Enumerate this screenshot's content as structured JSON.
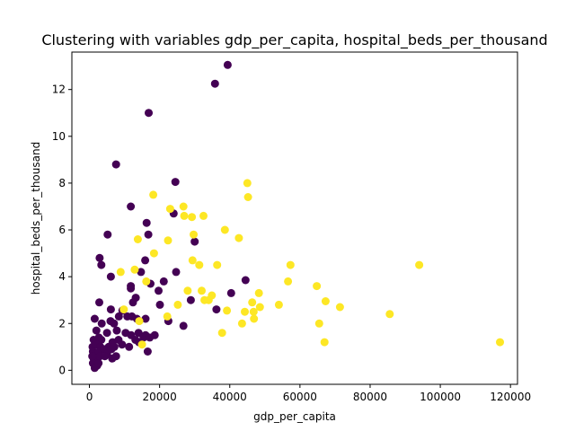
{
  "chart_data": {
    "type": "scatter",
    "title": "Clustering with variables gdp_per_capita, hospital_beds_per_thousand",
    "xlabel": "gdp_per_capita",
    "ylabel": "hospital_beds_per_thousand",
    "xlim": [
      -5000,
      122000
    ],
    "ylim": [
      -0.6,
      13.6
    ],
    "xticks": [
      0,
      20000,
      40000,
      60000,
      80000,
      100000,
      120000
    ],
    "xtick_labels": [
      "0",
      "20000",
      "40000",
      "60000",
      "80000",
      "100000",
      "120000"
    ],
    "yticks": [
      0,
      2,
      4,
      6,
      8,
      10,
      12
    ],
    "ytick_labels": [
      "0",
      "2",
      "4",
      "6",
      "8",
      "10",
      "12"
    ],
    "grid": false,
    "colors": {
      "cluster_0": "#440154",
      "cluster_1": "#fde725"
    },
    "series": [
      {
        "cluster": 0,
        "color": "#440154",
        "points": [
          [
            39400,
            13.05
          ],
          [
            35800,
            12.25
          ],
          [
            16900,
            11.0
          ],
          [
            7600,
            8.8
          ],
          [
            24500,
            8.05
          ],
          [
            11800,
            7.0
          ],
          [
            24000,
            6.7
          ],
          [
            16300,
            6.3
          ],
          [
            5200,
            5.8
          ],
          [
            16800,
            5.8
          ],
          [
            30000,
            5.5
          ],
          [
            2900,
            4.8
          ],
          [
            3400,
            4.5
          ],
          [
            15900,
            4.7
          ],
          [
            24700,
            4.2
          ],
          [
            6100,
            4.0
          ],
          [
            14700,
            4.2
          ],
          [
            17400,
            3.7
          ],
          [
            21200,
            3.8
          ],
          [
            44500,
            3.85
          ],
          [
            11800,
            3.6
          ],
          [
            11800,
            3.5
          ],
          [
            19700,
            3.4
          ],
          [
            40400,
            3.3
          ],
          [
            13200,
            3.1
          ],
          [
            2800,
            2.9
          ],
          [
            12400,
            2.9
          ],
          [
            28900,
            3.0
          ],
          [
            36200,
            2.6
          ],
          [
            20100,
            2.8
          ],
          [
            9400,
            2.55
          ],
          [
            6100,
            2.6
          ],
          [
            8400,
            2.3
          ],
          [
            10800,
            2.3
          ],
          [
            12100,
            2.3
          ],
          [
            13500,
            2.2
          ],
          [
            16000,
            2.2
          ],
          [
            1500,
            2.2
          ],
          [
            22500,
            2.1
          ],
          [
            26800,
            1.9
          ],
          [
            3500,
            2.0
          ],
          [
            6000,
            2.1
          ],
          [
            7000,
            2.0
          ],
          [
            2000,
            1.7
          ],
          [
            5000,
            1.6
          ],
          [
            7800,
            1.7
          ],
          [
            10300,
            1.6
          ],
          [
            11900,
            1.5
          ],
          [
            14000,
            1.6
          ],
          [
            16000,
            1.5
          ],
          [
            18600,
            1.5
          ],
          [
            1200,
            1.3
          ],
          [
            2700,
            1.4
          ],
          [
            3400,
            1.3
          ],
          [
            6600,
            1.2
          ],
          [
            8300,
            1.3
          ],
          [
            13100,
            1.3
          ],
          [
            15400,
            1.4
          ],
          [
            17200,
            1.4
          ],
          [
            900,
            1.0
          ],
          [
            2200,
            1.1
          ],
          [
            3100,
            1.0
          ],
          [
            5500,
            1.0
          ],
          [
            7100,
            1.0
          ],
          [
            9300,
            1.1
          ],
          [
            11300,
            1.0
          ],
          [
            14100,
            1.2
          ],
          [
            1000,
            0.8
          ],
          [
            1800,
            0.7
          ],
          [
            2700,
            0.8
          ],
          [
            4200,
            0.9
          ],
          [
            5000,
            0.7
          ],
          [
            6300,
            0.9
          ],
          [
            7600,
            0.6
          ],
          [
            16600,
            0.8
          ],
          [
            1200,
            0.5
          ],
          [
            1900,
            0.4
          ],
          [
            3000,
            0.6
          ],
          [
            4400,
            0.6
          ],
          [
            6500,
            0.5
          ],
          [
            1000,
            0.3
          ],
          [
            2200,
            0.2
          ],
          [
            1500,
            0.1
          ],
          [
            2600,
            0.3
          ],
          [
            800,
            0.6
          ]
        ]
      },
      {
        "cluster": 1,
        "color": "#fde725",
        "points": [
          [
            45000,
            8.0
          ],
          [
            45200,
            7.4
          ],
          [
            18200,
            7.5
          ],
          [
            26800,
            7.0
          ],
          [
            23000,
            6.9
          ],
          [
            27000,
            6.6
          ],
          [
            29200,
            6.55
          ],
          [
            32500,
            6.6
          ],
          [
            38600,
            6.0
          ],
          [
            42600,
            5.65
          ],
          [
            13800,
            5.6
          ],
          [
            22400,
            5.55
          ],
          [
            29700,
            5.8
          ],
          [
            18400,
            5.0
          ],
          [
            29400,
            4.7
          ],
          [
            31300,
            4.5
          ],
          [
            36400,
            4.5
          ],
          [
            57300,
            4.5
          ],
          [
            94000,
            4.5
          ],
          [
            8900,
            4.2
          ],
          [
            12900,
            4.3
          ],
          [
            16200,
            3.8
          ],
          [
            56600,
            3.8
          ],
          [
            64800,
            3.6
          ],
          [
            28000,
            3.4
          ],
          [
            32000,
            3.4
          ],
          [
            48300,
            3.3
          ],
          [
            34900,
            3.2
          ],
          [
            67300,
            2.95
          ],
          [
            32800,
            3.0
          ],
          [
            34000,
            3.0
          ],
          [
            46400,
            2.9
          ],
          [
            25200,
            2.8
          ],
          [
            54000,
            2.8
          ],
          [
            71400,
            2.7
          ],
          [
            48600,
            2.7
          ],
          [
            9800,
            2.6
          ],
          [
            39200,
            2.55
          ],
          [
            44300,
            2.5
          ],
          [
            46800,
            2.5
          ],
          [
            85600,
            2.4
          ],
          [
            22200,
            2.3
          ],
          [
            46900,
            2.2
          ],
          [
            14200,
            2.1
          ],
          [
            43500,
            2.0
          ],
          [
            65500,
            2.0
          ],
          [
            37800,
            1.6
          ],
          [
            67000,
            1.2
          ],
          [
            117000,
            1.2
          ],
          [
            15000,
            1.1
          ]
        ]
      }
    ]
  }
}
